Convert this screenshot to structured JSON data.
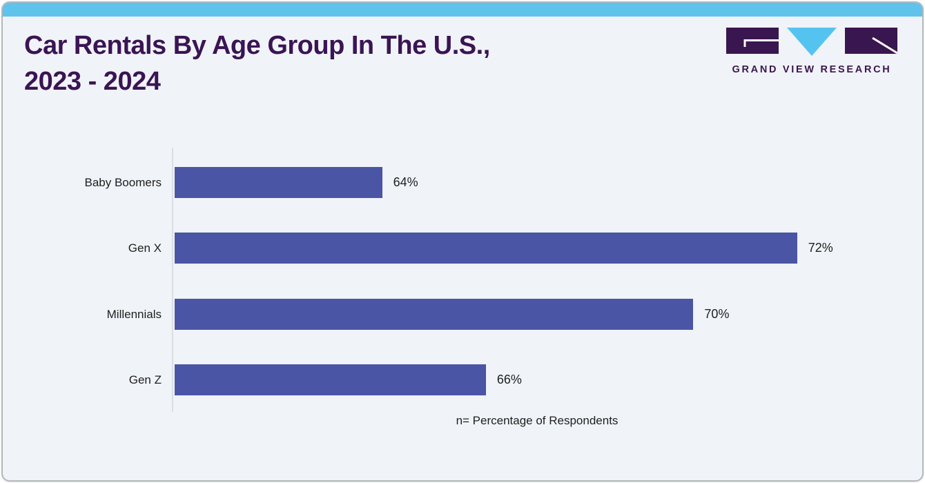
{
  "header": {
    "title_line1": "Car Rentals By Age Group In The U.S.,",
    "title_line2": "2023 - 2024",
    "brand": "GRAND VIEW RESEARCH"
  },
  "colors": {
    "background": "#F0F3F8",
    "header_strip": "#5FC3EC",
    "title": "#3A1454",
    "bar": "#4A55A5",
    "logo_purple": "#3A1650",
    "logo_blue": "#55C3F0",
    "label": "#1E1E1E",
    "axis_line": "#DCDDE0"
  },
  "chart_data": {
    "type": "bar",
    "orientation": "horizontal",
    "title": "Car Rentals By Age Group In The U.S., 2023 - 2024",
    "categories": [
      "Baby Boomers",
      "Gen X",
      "Millennials",
      "Gen Z"
    ],
    "values": [
      64,
      72,
      70,
      66
    ],
    "value_labels": [
      "64%",
      "72%",
      "70%",
      "66%"
    ],
    "unit": "%",
    "xlim": [
      60,
      74
    ],
    "footnote": "n= Percentage of Respondents",
    "grid": false,
    "legend": false,
    "bar_color": "#4A55A5"
  }
}
